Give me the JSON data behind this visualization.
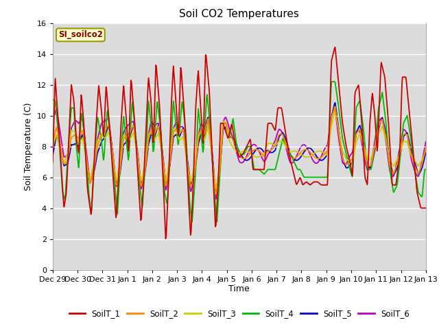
{
  "title": "Soil CO2 Temperatures",
  "xlabel": "Time",
  "ylabel": "Soil Temperature (C)",
  "ylim": [
    0,
    16
  ],
  "background_color": "#dcdcdc",
  "legend_label": "SI_soilco2",
  "series_colors": {
    "SoilT_1": "#cc0000",
    "SoilT_2": "#ff8800",
    "SoilT_3": "#cccc00",
    "SoilT_4": "#00bb00",
    "SoilT_5": "#0000cc",
    "SoilT_6": "#bb00bb"
  },
  "xtick_labels": [
    "Dec 29",
    "Dec 30",
    "Dec 31",
    "Jan 1",
    "Jan 2",
    "Jan 3",
    "Jan 4",
    "Jan 5",
    "Jan 6",
    "Jan 7",
    "Jan 8",
    "Jan 9",
    "Jan 10",
    "Jan 11",
    "Jan 12",
    "Jan 13"
  ],
  "ytick_values": [
    0,
    2,
    4,
    6,
    8,
    10,
    12,
    14,
    16
  ],
  "n_days": 15,
  "pts_per_day": 48
}
